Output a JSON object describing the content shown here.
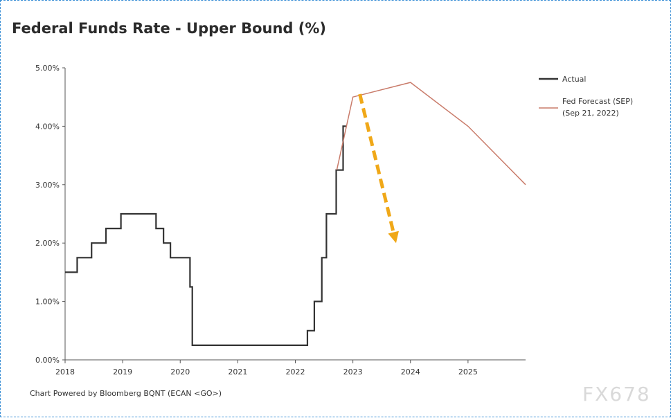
{
  "chart_data": {
    "type": "line",
    "title": "Federal Funds Rate - Upper Bound (%)",
    "xlabel": "",
    "ylabel": "",
    "xlim": [
      2018.0,
      2026.0
    ],
    "ylim": [
      0,
      5
    ],
    "grid": false,
    "legend_position": "top-right",
    "x_ticks": [
      {
        "value": 2018,
        "label": "2018"
      },
      {
        "value": 2019,
        "label": "2019"
      },
      {
        "value": 2020,
        "label": "2020"
      },
      {
        "value": 2021,
        "label": "2021"
      },
      {
        "value": 2022,
        "label": "2022"
      },
      {
        "value": 2023,
        "label": "2023"
      },
      {
        "value": 2024,
        "label": "2024"
      },
      {
        "value": 2025,
        "label": "2025"
      }
    ],
    "y_ticks": [
      {
        "value": 0,
        "label": "0.00%"
      },
      {
        "value": 1,
        "label": "1.00%"
      },
      {
        "value": 2,
        "label": "2.00%"
      },
      {
        "value": 3,
        "label": "3.00%"
      },
      {
        "value": 4,
        "label": "4.00%"
      },
      {
        "value": 5,
        "label": "5.00%"
      }
    ],
    "series": [
      {
        "name": "Actual",
        "style": "step",
        "color": "#333333",
        "x": [
          2018.0,
          2018.21,
          2018.46,
          2018.71,
          2018.97,
          2019.58,
          2019.71,
          2019.83,
          2020.17,
          2020.21,
          2022.21,
          2022.33,
          2022.46,
          2022.54,
          2022.71,
          2022.83,
          2022.88
        ],
        "y": [
          1.5,
          1.75,
          2.0,
          2.25,
          2.5,
          2.25,
          2.0,
          1.75,
          1.25,
          0.25,
          0.5,
          1.0,
          1.75,
          2.5,
          3.25,
          4.0,
          4.0
        ]
      },
      {
        "name": "Fed Forecast (SEP)\n(Sep 21, 2022)",
        "style": "line",
        "color": "#c97b6a",
        "x": [
          2022.72,
          2023.0,
          2024.0,
          2025.0,
          2026.0
        ],
        "y": [
          3.25,
          4.5,
          4.75,
          4.0,
          3.0
        ]
      }
    ],
    "annotations": [
      {
        "type": "arrow",
        "style": "dashed",
        "color": "#f0a818",
        "from": {
          "x": 2023.12,
          "y": 4.55
        },
        "to": {
          "x": 2023.75,
          "y": 2.0
        }
      }
    ]
  },
  "legend": {
    "actual": "Actual",
    "forecast_line1": "Fed Forecast (SEP)",
    "forecast_line2": "(Sep 21, 2022)"
  },
  "footer": "Chart Powered by Bloomberg BQNT (ECAN <GO>)",
  "watermark": "FX678"
}
